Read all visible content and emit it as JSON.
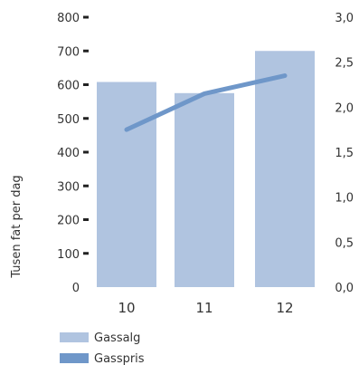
{
  "chart_data": {
    "type": "bar",
    "categories": [
      "10",
      "11",
      "12"
    ],
    "ylabel_left": "Tusen fat per dag",
    "ylim_left": [
      0,
      800
    ],
    "yticks_left": [
      "0",
      "100",
      "200",
      "300",
      "400",
      "500",
      "600",
      "700",
      "800"
    ],
    "ylim_right": [
      0,
      3
    ],
    "yticks_right": [
      "0,0",
      "0,5",
      "1,0",
      "1,5",
      "2,0",
      "2,5",
      "3,0"
    ],
    "series": [
      {
        "name": "Gassalg",
        "type": "bar",
        "axis": "left",
        "values": [
          608,
          575,
          700
        ],
        "color": "#b0c4e0"
      },
      {
        "name": "Gasspris",
        "type": "line",
        "axis": "right",
        "values": [
          1.75,
          2.15,
          2.35
        ],
        "color": "#6f97c9"
      }
    ],
    "legend_position": "bottom-left",
    "grid": false
  }
}
